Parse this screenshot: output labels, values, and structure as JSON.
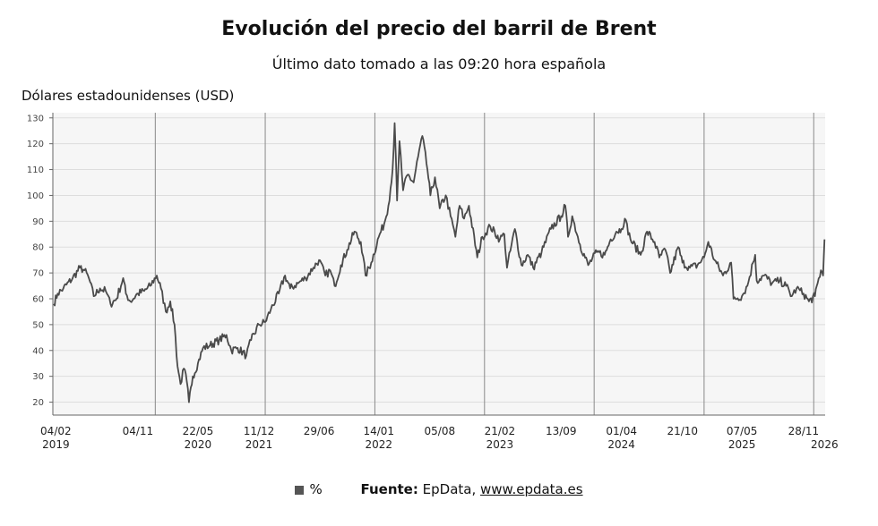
{
  "header": {
    "title": "Evolución del precio del barril de Brent",
    "subtitle": "Último dato tomado a las 09:20 hora española"
  },
  "footer": {
    "legend_label": "%",
    "source_label": "Fuente:",
    "source_name": "EpData,",
    "source_link": "www.epdata.es"
  },
  "colors": {
    "line": "#4a4a4a",
    "grid": "#dddddd",
    "plot_bg": "#f6f6f6"
  },
  "chart_data": {
    "type": "line",
    "title": "Evolución del precio del barril de Brent",
    "subtitle": "Último dato tomado a las 09:20 hora española",
    "ylabel": "Dólares estadounidenses (USD)",
    "xlabel": "",
    "ylim": [
      15,
      132
    ],
    "yticks": [
      20,
      30,
      40,
      50,
      60,
      70,
      80,
      90,
      100,
      110,
      120,
      130
    ],
    "grid": "horizontal",
    "legend": "bottom",
    "xlim": [
      "2019-01-25",
      "2026-02-08"
    ],
    "xticks": [
      {
        "date": "2019-02-04",
        "label": "04/02",
        "year": "2019"
      },
      {
        "date": "2019-11-04",
        "label": "04/11",
        "year": ""
      },
      {
        "date": "2020-05-22",
        "label": "22/05",
        "year": "2020"
      },
      {
        "date": "2020-12-11",
        "label": "11/12",
        "year": "2021"
      },
      {
        "date": "2021-06-29",
        "label": "29/06",
        "year": ""
      },
      {
        "date": "2022-01-14",
        "label": "14/01",
        "year": "2022"
      },
      {
        "date": "2022-08-05",
        "label": "05/08",
        "year": ""
      },
      {
        "date": "2023-02-21",
        "label": "21/02",
        "year": "2023"
      },
      {
        "date": "2023-09-13",
        "label": "13/09",
        "year": ""
      },
      {
        "date": "2024-04-01",
        "label": "01/04",
        "year": "2024"
      },
      {
        "date": "2024-10-21",
        "label": "21/10",
        "year": ""
      },
      {
        "date": "2025-05-07",
        "label": "07/05",
        "year": "2025"
      },
      {
        "date": "2025-11-28",
        "label": "28/11",
        "year": ""
      },
      {
        "date": "2026-02-06",
        "label": "",
        "year": "2026"
      }
    ],
    "year_lines": [
      "2020-01-01",
      "2021-01-01",
      "2022-01-01",
      "2023-01-01",
      "2024-01-01",
      "2025-01-01",
      "2026-01-01"
    ],
    "series": [
      {
        "name": "%",
        "points": [
          [
            "2019-01-28",
            58
          ],
          [
            "2019-02-10",
            62
          ],
          [
            "2019-03-01",
            64
          ],
          [
            "2019-04-01",
            68
          ],
          [
            "2019-04-25",
            72
          ],
          [
            "2019-05-10",
            71
          ],
          [
            "2019-05-25",
            68
          ],
          [
            "2019-06-10",
            61
          ],
          [
            "2019-07-01",
            64
          ],
          [
            "2019-07-20",
            63
          ],
          [
            "2019-08-05",
            58
          ],
          [
            "2019-08-25",
            60
          ],
          [
            "2019-09-16",
            68
          ],
          [
            "2019-09-25",
            62
          ],
          [
            "2019-10-10",
            59
          ],
          [
            "2019-11-04",
            62
          ],
          [
            "2019-11-25",
            63
          ],
          [
            "2019-12-15",
            65
          ],
          [
            "2020-01-06",
            69
          ],
          [
            "2020-01-20",
            64
          ],
          [
            "2020-02-05",
            55
          ],
          [
            "2020-02-20",
            59
          ],
          [
            "2020-03-05",
            50
          ],
          [
            "2020-03-15",
            34
          ],
          [
            "2020-03-25",
            27
          ],
          [
            "2020-04-05",
            33
          ],
          [
            "2020-04-15",
            28
          ],
          [
            "2020-04-22",
            20
          ],
          [
            "2020-05-05",
            30
          ],
          [
            "2020-05-22",
            35
          ],
          [
            "2020-06-08",
            41
          ],
          [
            "2020-07-01",
            42
          ],
          [
            "2020-08-01",
            44
          ],
          [
            "2020-08-25",
            46
          ],
          [
            "2020-09-10",
            40
          ],
          [
            "2020-10-01",
            41
          ],
          [
            "2020-10-30",
            38
          ],
          [
            "2020-11-15",
            44
          ],
          [
            "2020-12-11",
            50
          ],
          [
            "2021-01-01",
            51
          ],
          [
            "2021-01-20",
            56
          ],
          [
            "2021-02-15",
            62
          ],
          [
            "2021-03-08",
            69
          ],
          [
            "2021-03-25",
            64
          ],
          [
            "2021-04-20",
            66
          ],
          [
            "2021-05-15",
            68
          ],
          [
            "2021-06-10",
            72
          ],
          [
            "2021-06-29",
            75
          ],
          [
            "2021-07-20",
            69
          ],
          [
            "2021-08-05",
            71
          ],
          [
            "2021-08-20",
            65
          ],
          [
            "2021-09-10",
            73
          ],
          [
            "2021-10-01",
            79
          ],
          [
            "2021-10-25",
            86
          ],
          [
            "2021-11-15",
            82
          ],
          [
            "2021-12-01",
            69
          ],
          [
            "2021-12-20",
            74
          ],
          [
            "2022-01-14",
            84
          ],
          [
            "2022-02-01",
            89
          ],
          [
            "2022-02-15",
            96
          ],
          [
            "2022-03-01",
            110
          ],
          [
            "2022-03-08",
            128
          ],
          [
            "2022-03-16",
            98
          ],
          [
            "2022-03-24",
            121
          ],
          [
            "2022-04-05",
            102
          ],
          [
            "2022-04-20",
            108
          ],
          [
            "2022-05-10",
            105
          ],
          [
            "2022-05-25",
            115
          ],
          [
            "2022-06-08",
            123
          ],
          [
            "2022-06-25",
            110
          ],
          [
            "2022-07-05",
            100
          ],
          [
            "2022-07-20",
            107
          ],
          [
            "2022-08-05",
            95
          ],
          [
            "2022-08-25",
            100
          ],
          [
            "2022-09-10",
            92
          ],
          [
            "2022-09-26",
            84
          ],
          [
            "2022-10-10",
            96
          ],
          [
            "2022-10-25",
            91
          ],
          [
            "2022-11-10",
            96
          ],
          [
            "2022-12-08",
            76
          ],
          [
            "2022-12-25",
            84
          ],
          [
            "2023-01-20",
            88
          ],
          [
            "2023-02-21",
            83
          ],
          [
            "2023-03-08",
            85
          ],
          [
            "2023-03-17",
            72
          ],
          [
            "2023-04-12",
            87
          ],
          [
            "2023-05-04",
            73
          ],
          [
            "2023-05-25",
            77
          ],
          [
            "2023-06-12",
            72
          ],
          [
            "2023-07-10",
            78
          ],
          [
            "2023-08-10",
            87
          ],
          [
            "2023-09-13",
            92
          ],
          [
            "2023-09-27",
            96
          ],
          [
            "2023-10-06",
            84
          ],
          [
            "2023-10-20",
            92
          ],
          [
            "2023-11-15",
            81
          ],
          [
            "2023-12-12",
            73
          ],
          [
            "2024-01-10",
            78
          ],
          [
            "2024-02-05",
            77
          ],
          [
            "2024-02-25",
            83
          ],
          [
            "2024-03-15",
            86
          ],
          [
            "2024-04-01",
            87
          ],
          [
            "2024-04-12",
            91
          ],
          [
            "2024-05-01",
            83
          ],
          [
            "2024-06-04",
            77
          ],
          [
            "2024-06-25",
            86
          ],
          [
            "2024-07-20",
            82
          ],
          [
            "2024-08-05",
            76
          ],
          [
            "2024-08-25",
            79
          ],
          [
            "2024-09-10",
            70
          ],
          [
            "2024-10-07",
            80
          ],
          [
            "2024-10-21",
            74
          ],
          [
            "2024-11-15",
            72
          ],
          [
            "2024-12-10",
            73
          ],
          [
            "2025-01-01",
            76
          ],
          [
            "2025-01-15",
            82
          ],
          [
            "2025-02-05",
            75
          ],
          [
            "2025-03-05",
            69
          ],
          [
            "2025-04-01",
            74
          ],
          [
            "2025-04-09",
            60
          ],
          [
            "2025-05-07",
            61
          ],
          [
            "2025-05-25",
            65
          ],
          [
            "2025-06-13",
            74
          ],
          [
            "2025-06-20",
            77
          ],
          [
            "2025-06-25",
            67
          ],
          [
            "2025-07-20",
            69
          ],
          [
            "2025-08-15",
            66
          ],
          [
            "2025-09-10",
            67
          ],
          [
            "2025-10-01",
            65
          ],
          [
            "2025-10-20",
            61
          ],
          [
            "2025-11-05",
            64
          ],
          [
            "2025-11-28",
            62
          ],
          [
            "2025-12-16",
            59
          ],
          [
            "2026-01-05",
            61
          ],
          [
            "2026-01-14",
            66
          ],
          [
            "2026-01-25",
            71
          ],
          [
            "2026-02-01",
            69
          ],
          [
            "2026-02-06",
            83
          ]
        ]
      }
    ]
  }
}
